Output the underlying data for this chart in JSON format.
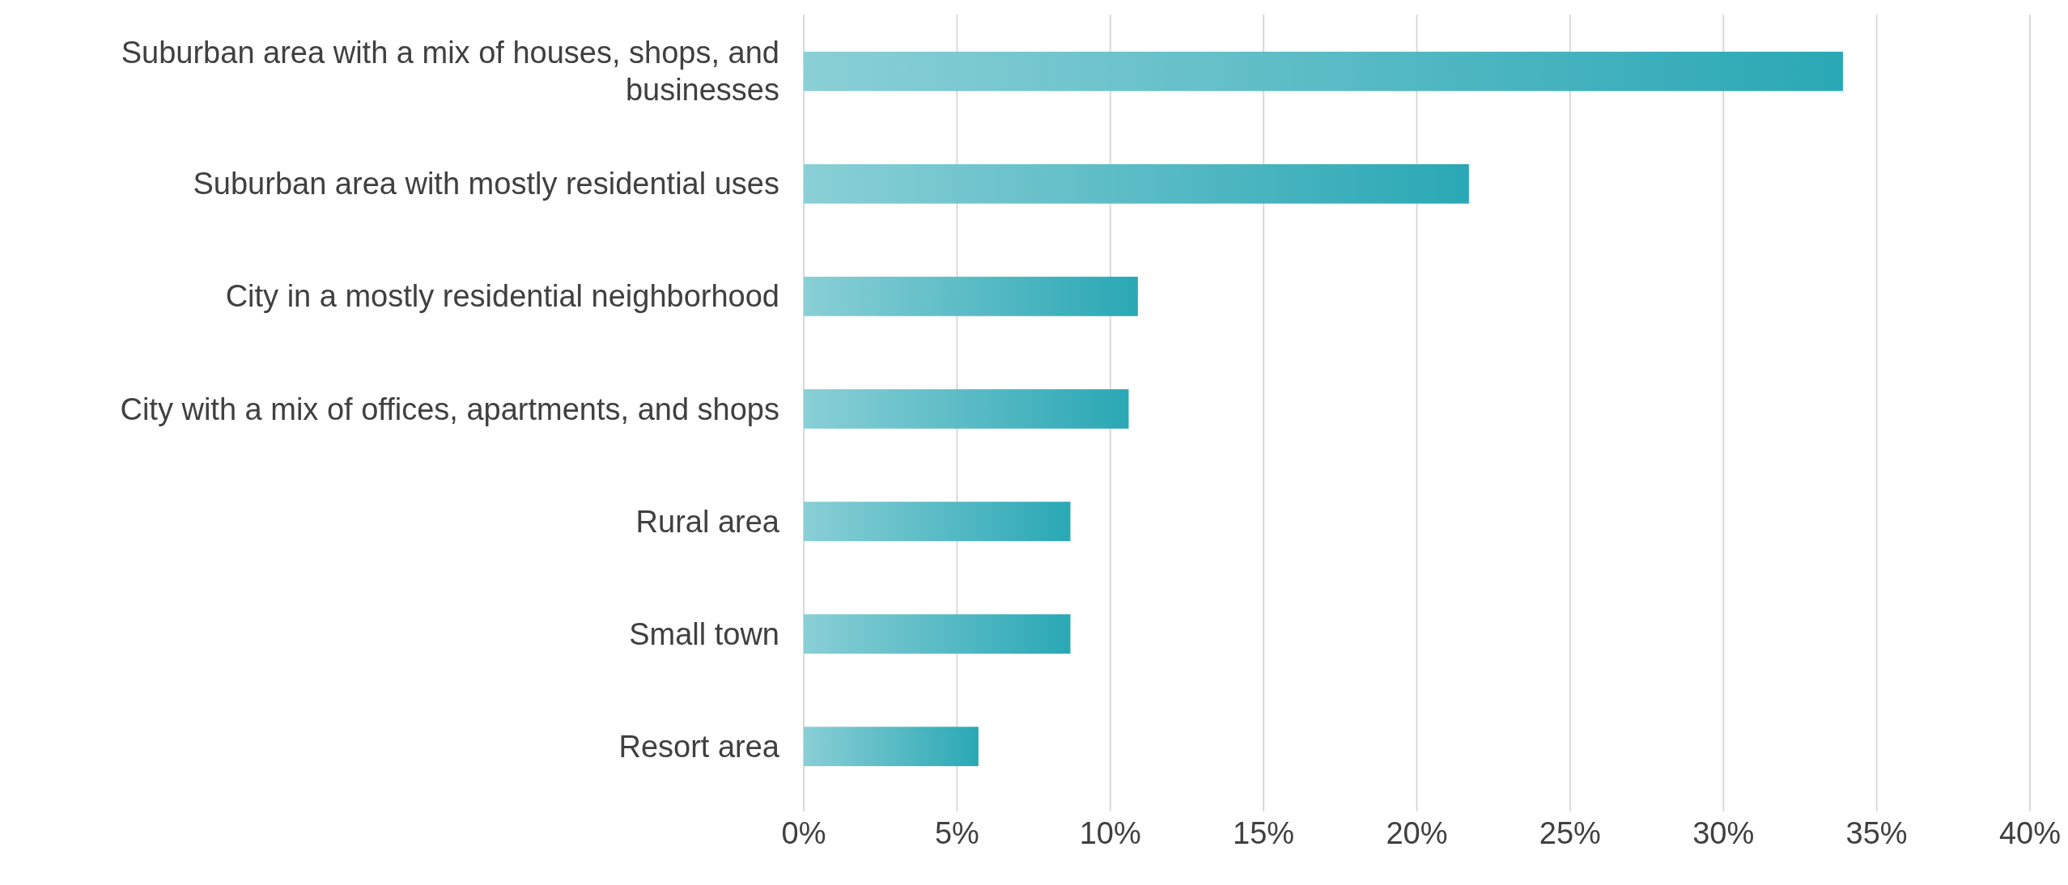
{
  "chart_data": {
    "type": "bar",
    "orientation": "horizontal",
    "categories": [
      "Suburban area with a mix of houses, shops, and businesses",
      "Suburban area with mostly residential uses",
      "City in a mostly residential neighborhood",
      "City with a mix of offices, apartments, and shops",
      "Rural area",
      "Small town",
      "Resort area"
    ],
    "values": [
      33.9,
      21.7,
      10.9,
      10.6,
      8.7,
      8.7,
      5.7
    ],
    "color": "#2aa8b5",
    "xlim": [
      0,
      40
    ],
    "xticks": [
      {
        "value": 0,
        "label": "0%"
      },
      {
        "value": 5,
        "label": "5%"
      },
      {
        "value": 10,
        "label": "10%"
      },
      {
        "value": 15,
        "label": "15%"
      },
      {
        "value": 20,
        "label": "20%"
      },
      {
        "value": 25,
        "label": "25%"
      },
      {
        "value": 30,
        "label": "30%"
      },
      {
        "value": 35,
        "label": "35%"
      },
      {
        "value": 40,
        "label": "40%"
      }
    ],
    "grid": "x"
  }
}
